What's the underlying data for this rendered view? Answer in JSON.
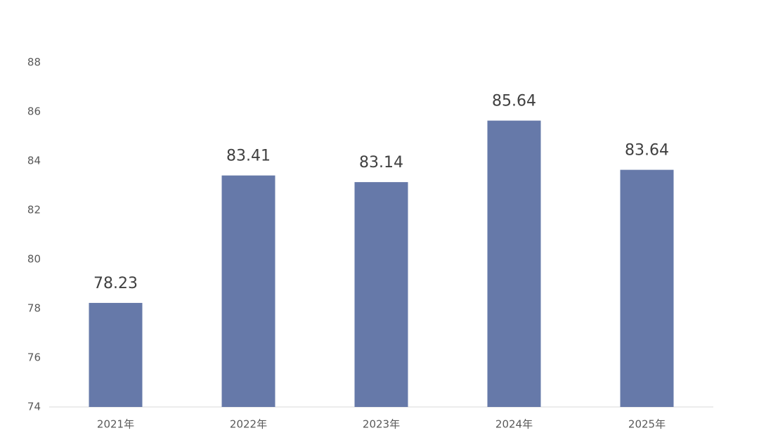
{
  "chart_data": {
    "type": "bar",
    "categories": [
      "2021年",
      "2022年",
      "2023年",
      "2024年",
      "2025年"
    ],
    "values": [
      78.23,
      83.41,
      83.14,
      85.64,
      83.64
    ],
    "color": "#6679a9",
    "ylim": [
      74,
      88
    ],
    "yticks": [
      74,
      76,
      78,
      80,
      82,
      84,
      86,
      88
    ],
    "grid": false
  }
}
